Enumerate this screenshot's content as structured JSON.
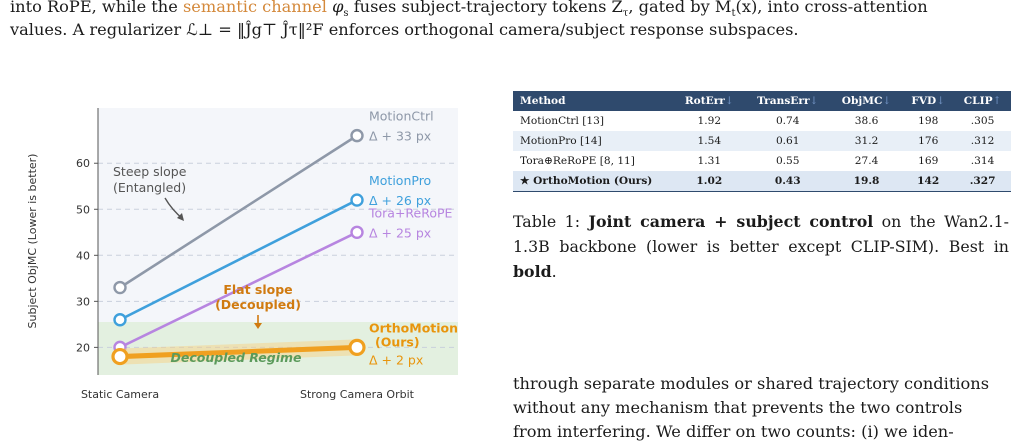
{
  "intro": {
    "line1_a": "into RoPE, while the ",
    "line1_hl": "semantic channel",
    "line1_b": " φ",
    "line1_sub": "s",
    "line1_c": " fuses subject-trajectory tokens Z",
    "line1_sub2": "τ",
    "line1_d": ", gated by M",
    "line1_sub3": "t",
    "line1_e": "(x), into cross-attention",
    "line2": "values. A regularizer ℒ⊥ = ‖Ĵg⊤ Ĵτ‖²F enforces orthogonal camera/subject response subspaces."
  },
  "table": {
    "headers": [
      "Method",
      "RotErr",
      "TransErr",
      "ObjMC",
      "FVD",
      "CLIP"
    ],
    "header_arrows": [
      "",
      "↓",
      "↓",
      "↓",
      "↓",
      "↑"
    ],
    "rows": [
      {
        "method": "MotionCtrl [13]",
        "rot": "1.92",
        "trans": "0.74",
        "objmc": "38.6",
        "fvd": "198",
        "clip": ".305"
      },
      {
        "method": "MotionPro [14]",
        "rot": "1.54",
        "trans": "0.61",
        "objmc": "31.2",
        "fvd": "176",
        "clip": ".312"
      },
      {
        "method": "Tora⊕ReRoPE [8, 11]",
        "rot": "1.31",
        "trans": "0.55",
        "objmc": "27.4",
        "fvd": "169",
        "clip": ".314"
      },
      {
        "method": "★ OrthoMotion (Ours)",
        "rot": "1.02",
        "trans": "0.43",
        "objmc": "19.8",
        "fvd": "142",
        "clip": ".327"
      }
    ]
  },
  "caption": {
    "prefix": "Table 1: ",
    "bold": "Joint camera + subject control",
    "middle": " on the Wan2.1-1.3B backbone (lower is better except CLIP-SIM). Best in ",
    "bold2": "bold",
    "end": "."
  },
  "body_text": {
    "line1": "through separate modules or shared trajectory conditions",
    "line2": "without any mechanism that prevents the two controls",
    "line3": "from interfering. We differ on two counts: (i) we iden-"
  },
  "chart_data": {
    "type": "line",
    "ylabel": "Subject ObjMC  (Lower is better)",
    "categories": [
      "Static Camera",
      "Strong Camera Orbit"
    ],
    "ylim": [
      14,
      72
    ],
    "yticks": [
      20,
      30,
      40,
      50,
      60
    ],
    "grid": true,
    "series": [
      {
        "name": "MotionCtrl",
        "values": [
          33,
          66
        ],
        "delta": "Δ + 33 px",
        "color": "#8e98a8"
      },
      {
        "name": "MotionPro",
        "values": [
          26,
          52
        ],
        "delta": "Δ + 26 px",
        "color": "#3fa0dc"
      },
      {
        "name": "Tora+ReRoPE",
        "values": [
          20,
          45
        ],
        "delta": "Δ + 25 px",
        "color": "#b785e0"
      },
      {
        "name": "OrthoMotion",
        "name2": "(Ours)",
        "values": [
          18,
          20
        ],
        "delta": "Δ + 2 px",
        "color": "#f0a020"
      }
    ],
    "annotations": {
      "steep": [
        "Steep slope",
        "(Entangled)"
      ],
      "flat": [
        "Flat slope",
        "(Decoupled)"
      ],
      "regime": "Decoupled Regime"
    }
  }
}
